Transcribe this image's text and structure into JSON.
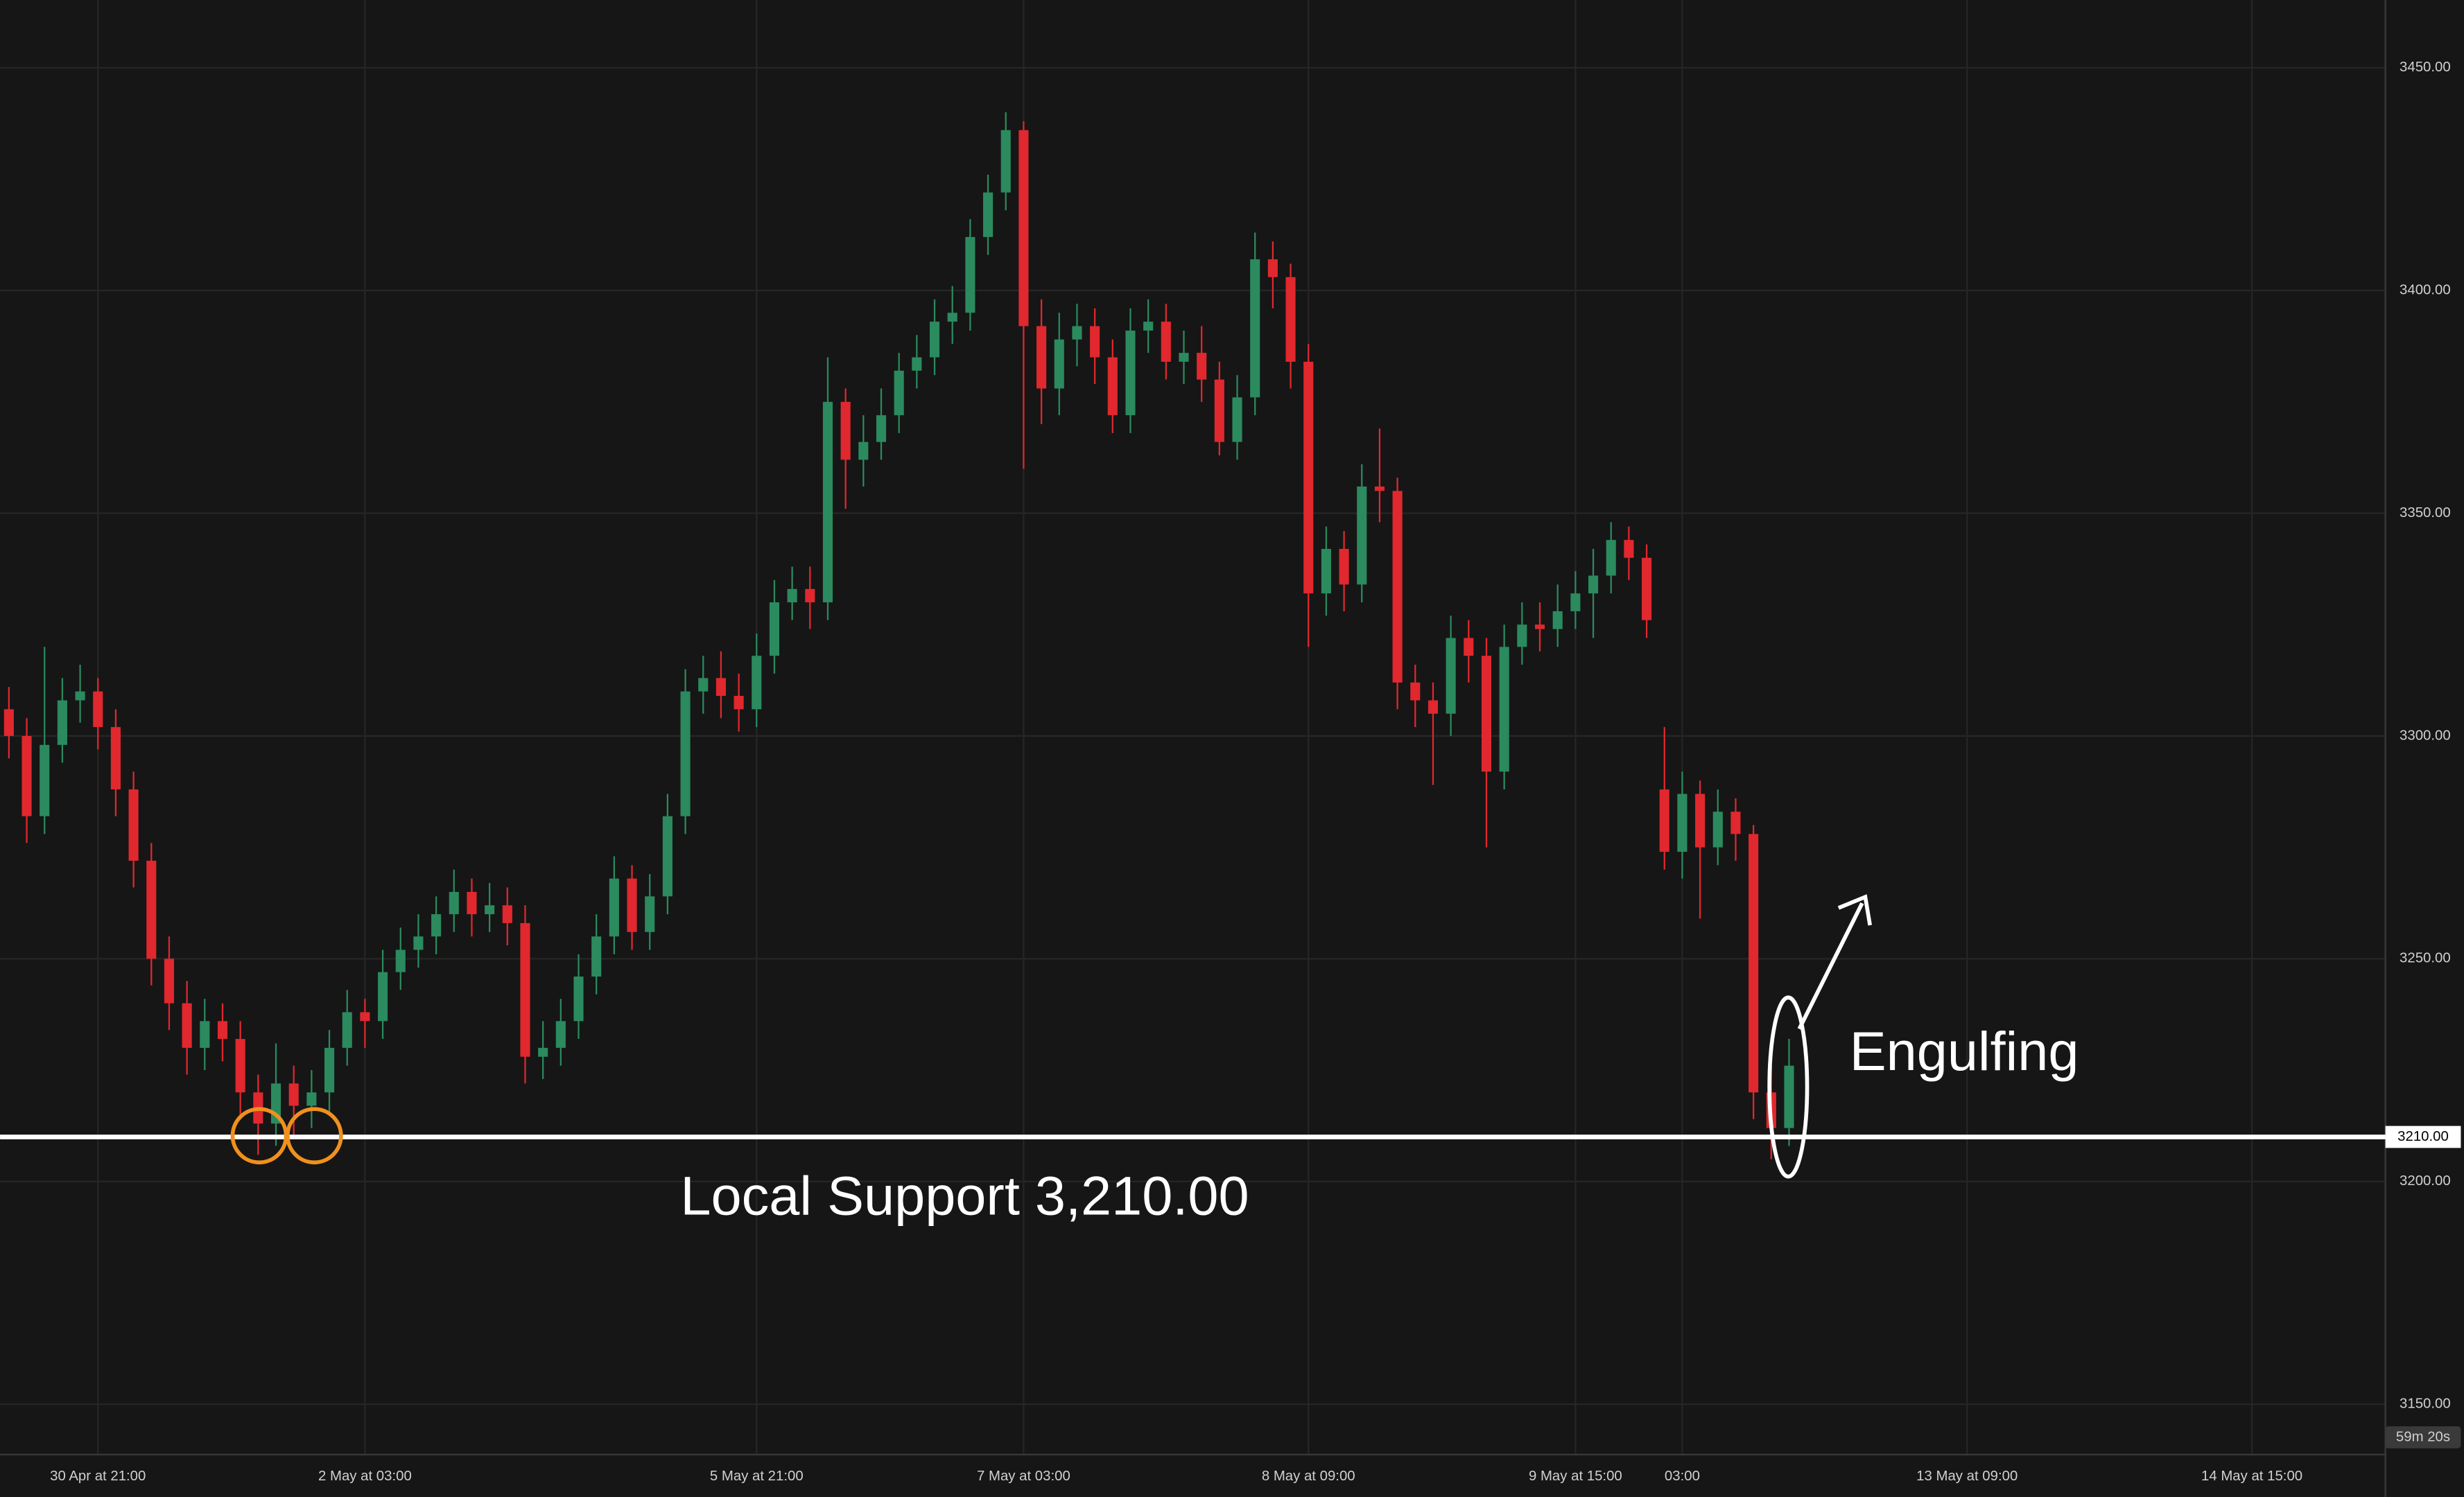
{
  "chart_data": {
    "type": "candlestick",
    "up_color": "#2b8a5e",
    "down_color": "#e0282e",
    "grid": true,
    "ylim": [
      3138.7,
      3465.2
    ],
    "yticks": [
      {
        "value": 3150,
        "label": "3150.00"
      },
      {
        "value": 3200,
        "label": "3200.00"
      },
      {
        "value": 3250,
        "label": "3250.00"
      },
      {
        "value": 3300,
        "label": "3300.00"
      },
      {
        "value": 3350,
        "label": "3350.00"
      },
      {
        "value": 3400,
        "label": "3400.00"
      },
      {
        "value": 3450,
        "label": "3450.00"
      }
    ],
    "categories": [
      null,
      null,
      null,
      null,
      null,
      "30 Apr at 21:00",
      null,
      null,
      null,
      null,
      null,
      null,
      null,
      null,
      null,
      null,
      null,
      null,
      null,
      null,
      "2 May at 03:00",
      null,
      null,
      null,
      null,
      null,
      null,
      null,
      null,
      null,
      null,
      null,
      null,
      null,
      null,
      null,
      null,
      null,
      null,
      null,
      null,
      null,
      "5 May at 21:00",
      null,
      null,
      null,
      null,
      null,
      null,
      null,
      null,
      null,
      null,
      null,
      null,
      null,
      null,
      "7 May at 03:00",
      null,
      null,
      null,
      null,
      null,
      null,
      null,
      null,
      null,
      null,
      null,
      null,
      null,
      null,
      null,
      "8 May at 09:00",
      null,
      null,
      null,
      null,
      null,
      null,
      null,
      null,
      null,
      null,
      null,
      null,
      null,
      null,
      "9 May at 15:00",
      null,
      null,
      null,
      null,
      null,
      "03:00",
      null,
      null,
      null,
      null,
      null,
      null,
      null,
      null,
      null,
      null,
      null,
      null,
      null,
      null,
      null,
      "13 May at 09:00",
      null,
      null,
      null,
      null,
      null,
      null,
      null,
      null,
      null,
      null,
      null,
      null,
      null,
      null,
      null,
      "14 May at 15:00",
      null,
      null,
      null,
      null,
      null,
      null,
      null
    ],
    "open": [
      3306,
      3300,
      3282,
      3298,
      3308,
      3310,
      3302,
      3288,
      3272,
      3250,
      3240,
      3230,
      3236,
      3232,
      3220,
      3213,
      3222,
      3217,
      3220,
      3230,
      3238,
      3236,
      3247,
      3252,
      3255,
      3260,
      3265,
      3260,
      3262,
      3258,
      3228,
      3230,
      3236,
      3246,
      3255,
      3268,
      3256,
      3264,
      3282,
      3310,
      3313,
      3309,
      3306,
      3318,
      3330,
      3333,
      3330,
      3375,
      3362,
      3366,
      3372,
      3382,
      3385,
      3393,
      3395,
      3412,
      3422,
      3436,
      3392,
      3378,
      3389,
      3392,
      3385,
      3372,
      3391,
      3393,
      3384,
      3386,
      3380,
      3366,
      3376,
      3407,
      3403,
      3384,
      3332,
      3342,
      3334,
      3356,
      3355,
      3312,
      3308,
      3305,
      3322,
      3318,
      3292,
      3320,
      3325,
      3324,
      3328,
      3332,
      3336,
      3344,
      3340,
      3288,
      3274,
      3287,
      3275,
      3283,
      3278,
      3220,
      3212,
      null,
      null,
      null,
      null,
      null,
      null,
      null,
      null,
      null,
      null,
      null,
      null,
      null,
      null,
      null,
      null,
      null,
      null,
      null,
      null,
      null,
      null,
      null,
      null,
      null,
      null,
      null,
      null,
      null,
      null,
      null,
      null,
      null
    ],
    "high": [
      3311,
      3304,
      3320,
      3313,
      3316,
      3313,
      3306,
      3292,
      3276,
      3255,
      3245,
      3241,
      3240,
      3236,
      3224,
      3231,
      3226,
      3225,
      3234,
      3243,
      3241,
      3252,
      3257,
      3260,
      3264,
      3270,
      3268,
      3267,
      3266,
      3262,
      3236,
      3241,
      3251,
      3260,
      3273,
      3271,
      3269,
      3287,
      3315,
      3318,
      3319,
      3314,
      3323,
      3335,
      3338,
      3338,
      3385,
      3378,
      3372,
      3378,
      3386,
      3390,
      3398,
      3401,
      3416,
      3426,
      3440,
      3438,
      3398,
      3395,
      3397,
      3396,
      3389,
      3396,
      3398,
      3397,
      3391,
      3392,
      3384,
      3381,
      3413,
      3411,
      3406,
      3388,
      3347,
      3346,
      3361,
      3369,
      3358,
      3316,
      3312,
      3327,
      3326,
      3322,
      3325,
      3330,
      3330,
      3334,
      3337,
      3342,
      3348,
      3347,
      3343,
      3302,
      3292,
      3290,
      3288,
      3286,
      3280,
      3226,
      3232,
      null,
      null,
      null,
      null,
      null,
      null,
      null,
      null,
      null,
      null,
      null,
      null,
      null,
      null,
      null,
      null,
      null,
      null,
      null,
      null,
      null,
      null,
      null,
      null,
      null,
      null,
      null,
      null,
      null,
      null,
      null,
      null,
      null
    ],
    "low": [
      3295,
      3276,
      3278,
      3294,
      3303,
      3297,
      3282,
      3266,
      3244,
      3234,
      3224,
      3225,
      3227,
      3214,
      3206,
      3208,
      3210,
      3212,
      3215,
      3226,
      3230,
      3232,
      3243,
      3248,
      3251,
      3256,
      3255,
      3256,
      3253,
      3222,
      3223,
      3226,
      3232,
      3242,
      3251,
      3252,
      3252,
      3260,
      3278,
      3305,
      3304,
      3301,
      3302,
      3314,
      3326,
      3324,
      3326,
      3351,
      3356,
      3362,
      3368,
      3378,
      3381,
      3388,
      3391,
      3408,
      3418,
      3360,
      3370,
      3372,
      3383,
      3379,
      3368,
      3368,
      3386,
      3380,
      3379,
      3375,
      3363,
      3362,
      3372,
      3396,
      3378,
      3320,
      3327,
      3328,
      3330,
      3348,
      3306,
      3302,
      3289,
      3300,
      3312,
      3275,
      3288,
      3316,
      3319,
      3320,
      3324,
      3322,
      3332,
      3335,
      3322,
      3270,
      3268,
      3259,
      3271,
      3272,
      3214,
      3205,
      3208,
      null,
      null,
      null,
      null,
      null,
      null,
      null,
      null,
      null,
      null,
      null,
      null,
      null,
      null,
      null,
      null,
      null,
      null,
      null,
      null,
      null,
      null,
      null,
      null,
      null,
      null,
      null,
      null,
      null,
      null,
      null,
      null,
      null
    ],
    "close": [
      3300,
      3282,
      3298,
      3308,
      3310,
      3302,
      3288,
      3272,
      3250,
      3240,
      3230,
      3236,
      3232,
      3220,
      3213,
      3222,
      3217,
      3220,
      3230,
      3238,
      3236,
      3247,
      3252,
      3255,
      3260,
      3265,
      3260,
      3262,
      3258,
      3228,
      3230,
      3236,
      3246,
      3255,
      3268,
      3256,
      3264,
      3282,
      3310,
      3313,
      3309,
      3306,
      3318,
      3330,
      3333,
      3330,
      3375,
      3362,
      3366,
      3372,
      3382,
      3385,
      3393,
      3395,
      3412,
      3422,
      3436,
      3392,
      3378,
      3389,
      3392,
      3385,
      3372,
      3391,
      3393,
      3384,
      3386,
      3380,
      3366,
      3376,
      3407,
      3403,
      3384,
      3332,
      3342,
      3334,
      3356,
      3355,
      3312,
      3308,
      3305,
      3322,
      3318,
      3292,
      3320,
      3325,
      3324,
      3328,
      3332,
      3336,
      3344,
      3340,
      3326,
      3274,
      3287,
      3275,
      3283,
      3278,
      3220,
      3212,
      3226,
      null,
      null,
      null,
      null,
      null,
      null,
      null,
      null,
      null,
      null,
      null,
      null,
      null,
      null,
      null,
      null,
      null,
      null,
      null,
      null,
      null,
      null,
      null,
      null,
      null,
      null,
      null,
      null,
      null,
      null,
      null,
      null,
      null
    ],
    "support": {
      "value": 3210,
      "label": "3210.00"
    },
    "support_annotation": "Local Support 3,210.00",
    "pattern_annotation": "Engulfing",
    "countdown": "59m 20s"
  }
}
